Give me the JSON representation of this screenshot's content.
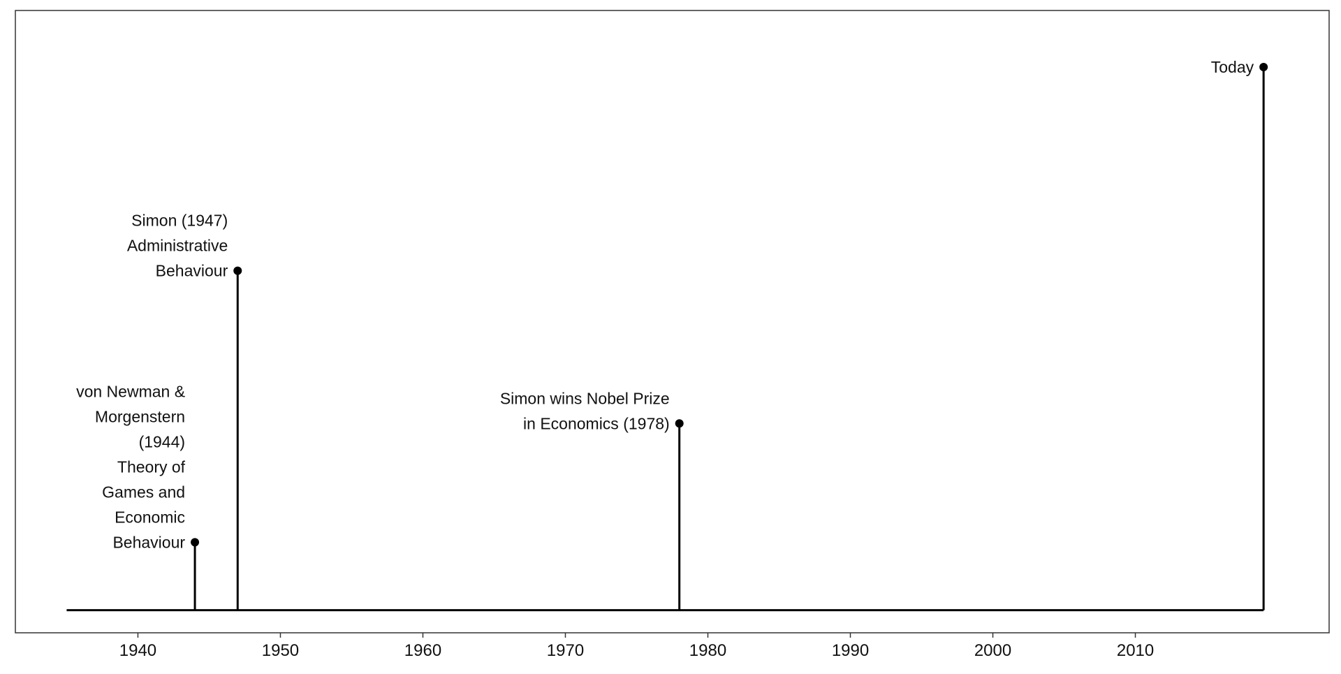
{
  "chart_data": {
    "type": "timeline",
    "title": "",
    "xlabel": "",
    "ylabel": "",
    "xlim": [
      1931.4,
      2023.6
    ],
    "ylim": [
      -0.04,
      1.06
    ],
    "grid": false,
    "baseline": {
      "x_start": 1935,
      "x_end": 2019
    },
    "x_ticks": [
      1940,
      1950,
      1960,
      1970,
      1980,
      1990,
      2000,
      2010
    ],
    "x_tick_labels": [
      "1940",
      "1950",
      "1960",
      "1970",
      "1980",
      "1990",
      "2000",
      "2010"
    ],
    "events": [
      {
        "year": 1944,
        "height": 0.12,
        "label_lines": [
          "von Newman &",
          "Morgenstern",
          "(1944)",
          "Theory of",
          "Games and",
          "Economic",
          "Behaviour"
        ]
      },
      {
        "year": 1947,
        "height": 0.6,
        "label_lines": [
          "Simon (1947)",
          "Administrative",
          "Behaviour"
        ]
      },
      {
        "year": 1978,
        "height": 0.33,
        "label_lines": [
          "Simon wins Nobel Prize",
          "in Economics (1978)"
        ]
      },
      {
        "year": 2019,
        "height": 0.96,
        "label_lines": [
          "Today"
        ]
      }
    ]
  },
  "colors": {
    "ink": "#000000",
    "text": "#111111",
    "frame": "#333333",
    "background": "#ffffff"
  }
}
